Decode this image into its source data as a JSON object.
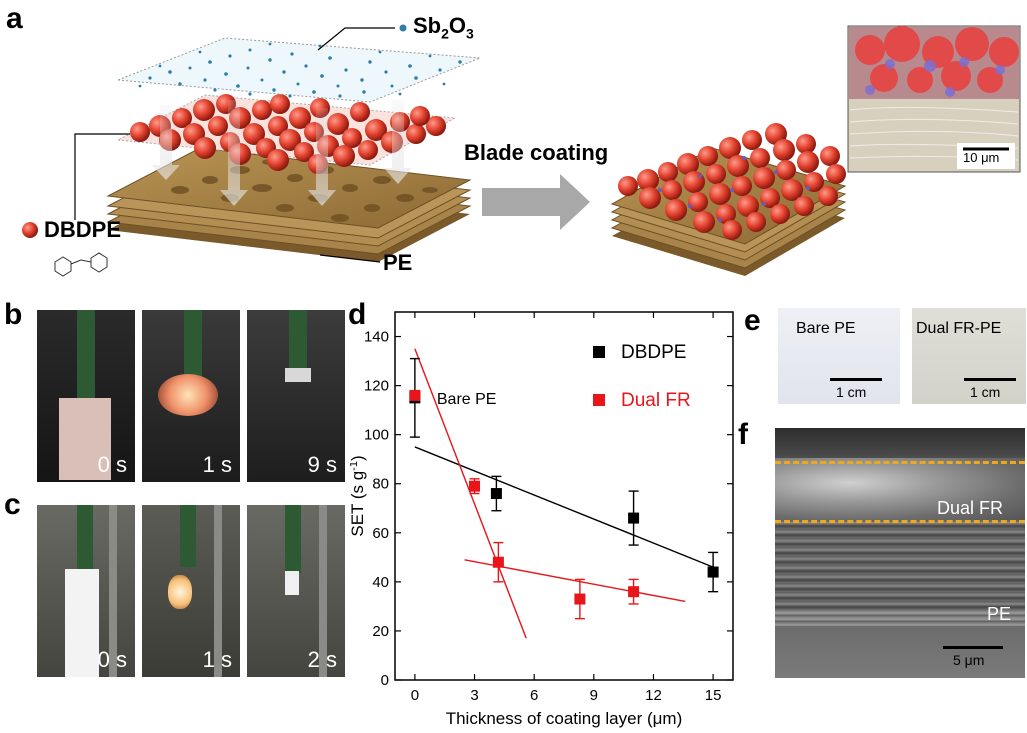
{
  "panel_a": {
    "letter": "a",
    "sb_label_main": "Sb",
    "sb_sub1": "2",
    "sb_mid": "O",
    "sb_sub2": "3",
    "dbdpe_label": "DBDPE",
    "pe_label": "PE",
    "process_label": "Blade coating",
    "scale_bar": "10 μm"
  },
  "panel_b": {
    "letter": "b",
    "times": [
      "0 s",
      "1 s",
      "9 s"
    ]
  },
  "panel_c": {
    "letter": "c",
    "times": [
      "0 s",
      "1 s",
      "2 s"
    ]
  },
  "panel_d": {
    "letter": "d"
  },
  "panel_e": {
    "letter": "e",
    "left_label": "Bare PE",
    "right_label": "Dual FR-PE",
    "scale_left": "1 cm",
    "scale_right": "1 cm"
  },
  "panel_f": {
    "letter": "f",
    "layer_top": "Dual FR",
    "layer_bottom": "PE",
    "scale_bar": "5 μm"
  },
  "chart_data": {
    "type": "scatter",
    "xlabel": "Thickness of coating layer (μm)",
    "ylabel_main": "SET (s g",
    "ylabel_sup": "-1",
    "ylabel_end": ")",
    "xlim": [
      -1,
      16
    ],
    "ylim": [
      0,
      150
    ],
    "xticks": [
      0,
      3,
      6,
      9,
      12,
      15
    ],
    "yticks": [
      0,
      20,
      40,
      60,
      80,
      100,
      120,
      140
    ],
    "annotation": "Bare PE",
    "legend_position": "top-right",
    "series": [
      {
        "name": "DBDPE",
        "color": "#000000",
        "x": [
          0,
          4.1,
          11,
          15
        ],
        "y": [
          115,
          76,
          66,
          44
        ],
        "err": [
          16,
          7,
          11,
          8
        ],
        "fit": [
          [
            0,
            95
          ],
          [
            15,
            46
          ]
        ]
      },
      {
        "name": "Dual FR",
        "color": "#e8151b",
        "x": [
          0,
          3,
          4.2,
          8.3,
          11
        ],
        "y": [
          116,
          79,
          48,
          33,
          36
        ],
        "err": [
          0,
          3,
          8,
          8,
          5
        ],
        "fit_steep": [
          [
            0,
            135
          ],
          [
            5.6,
            17
          ]
        ],
        "fit_flat": [
          [
            2.5,
            49
          ],
          [
            13.6,
            32
          ]
        ]
      }
    ]
  }
}
